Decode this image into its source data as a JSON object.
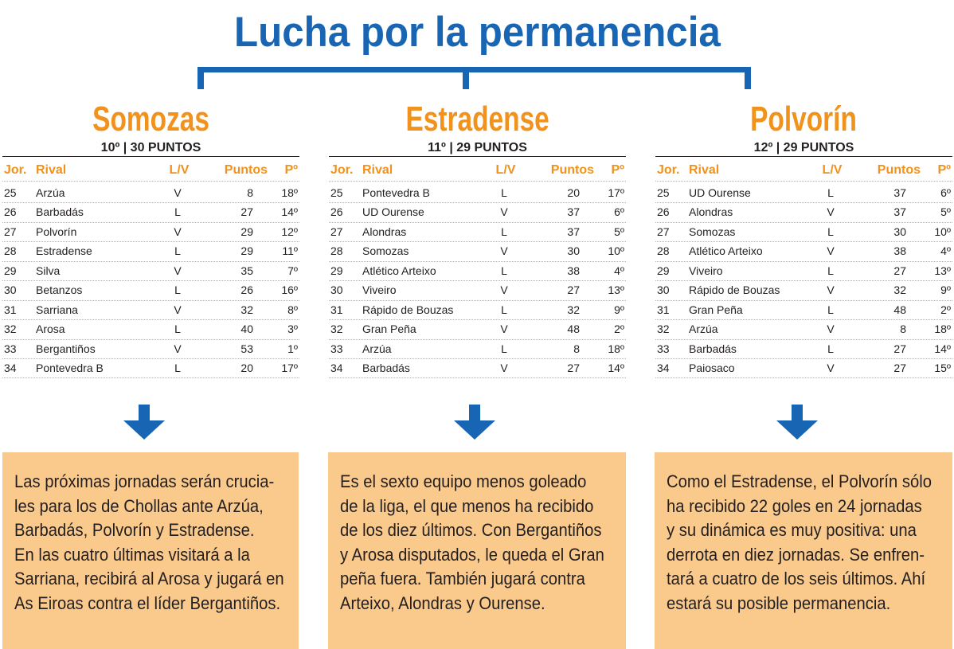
{
  "title": "Lucha por la permanencia",
  "colors": {
    "blue": "#1866b3",
    "orange": "#f0921c",
    "dots": "#f2a43a",
    "box": "#fac98c"
  },
  "icons": {
    "arrow": "arrow-down-icon"
  },
  "table_headers": {
    "jor": "Jor.",
    "rival": "Rival",
    "lv": "L/V",
    "puntos": "Puntos",
    "pos": "Pº"
  },
  "teams": [
    {
      "name": "Somozas",
      "standing": "10º | 30 PUNTOS",
      "fixtures": [
        {
          "jor": "25",
          "rival": "Arzúa",
          "lv": "V",
          "puntos": "8",
          "pos": "18º"
        },
        {
          "jor": "26",
          "rival": "Barbadás",
          "lv": "L",
          "puntos": "27",
          "pos": "14º"
        },
        {
          "jor": "27",
          "rival": "Polvorín",
          "lv": "V",
          "puntos": "29",
          "pos": "12º"
        },
        {
          "jor": "28",
          "rival": "Estradense",
          "lv": "L",
          "puntos": "29",
          "pos": "11º"
        },
        {
          "jor": "29",
          "rival": "Silva",
          "lv": "V",
          "puntos": "35",
          "pos": "7º"
        },
        {
          "jor": "30",
          "rival": "Betanzos",
          "lv": "L",
          "puntos": "26",
          "pos": "16º"
        },
        {
          "jor": "31",
          "rival": "Sarriana",
          "lv": "V",
          "puntos": "32",
          "pos": "8º"
        },
        {
          "jor": "32",
          "rival": "Arosa",
          "lv": "L",
          "puntos": "40",
          "pos": "3º"
        },
        {
          "jor": "33",
          "rival": "Bergantiños",
          "lv": "V",
          "puntos": "53",
          "pos": "1º"
        },
        {
          "jor": "34",
          "rival": "Pontevedra B",
          "lv": "L",
          "puntos": "20",
          "pos": "17º"
        }
      ],
      "summary_lines": [
        "Las próximas jornadas serán crucia-",
        "les para los de Chollas ante Arzúa,",
        "Barbadás, Polvorín y Estradense.",
        "En las cuatro últimas visitará a la",
        "Sarriana, recibirá al Arosa y jugará en",
        "As Eiroas contra el líder Bergantiños."
      ]
    },
    {
      "name": "Estradense",
      "standing": "11º | 29 PUNTOS",
      "fixtures": [
        {
          "jor": "25",
          "rival": "Pontevedra B",
          "lv": "L",
          "puntos": "20",
          "pos": "17º"
        },
        {
          "jor": "26",
          "rival": "UD Ourense",
          "lv": "V",
          "puntos": "37",
          "pos": "6º"
        },
        {
          "jor": "27",
          "rival": "Alondras",
          "lv": "L",
          "puntos": "37",
          "pos": "5º"
        },
        {
          "jor": "28",
          "rival": "Somozas",
          "lv": "V",
          "puntos": "30",
          "pos": "10º"
        },
        {
          "jor": "29",
          "rival": "Atlético Arteixo",
          "lv": "L",
          "puntos": "38",
          "pos": "4º"
        },
        {
          "jor": "30",
          "rival": "Viveiro",
          "lv": "V",
          "puntos": "27",
          "pos": "13º"
        },
        {
          "jor": "31",
          "rival": "Rápido de Bouzas",
          "lv": "L",
          "puntos": "32",
          "pos": "9º"
        },
        {
          "jor": "32",
          "rival": "Gran Peña",
          "lv": "V",
          "puntos": "48",
          "pos": "2º"
        },
        {
          "jor": "33",
          "rival": "Arzúa",
          "lv": "L",
          "puntos": "8",
          "pos": "18º"
        },
        {
          "jor": "34",
          "rival": "Barbadás",
          "lv": "V",
          "puntos": "27",
          "pos": "14º"
        }
      ],
      "summary_lines": [
        "Es el sexto equipo menos goleado",
        "de la liga, el que menos ha recibido",
        "de los diez últimos. Con Bergantiños",
        "y Arosa disputados, le queda el Gran",
        "peña fuera. También jugará contra",
        "Arteixo, Alondras y Ourense."
      ]
    },
    {
      "name": "Polvorín",
      "standing": "12º | 29 PUNTOS",
      "fixtures": [
        {
          "jor": "25",
          "rival": "UD Ourense",
          "lv": "L",
          "puntos": "37",
          "pos": "6º"
        },
        {
          "jor": "26",
          "rival": "Alondras",
          "lv": "V",
          "puntos": "37",
          "pos": "5º"
        },
        {
          "jor": "27",
          "rival": "Somozas",
          "lv": "L",
          "puntos": "30",
          "pos": "10º"
        },
        {
          "jor": "28",
          "rival": "Atlético Arteixo",
          "lv": "V",
          "puntos": "38",
          "pos": "4º"
        },
        {
          "jor": "29",
          "rival": "Viveiro",
          "lv": "L",
          "puntos": "27",
          "pos": "13º"
        },
        {
          "jor": "30",
          "rival": "Rápido de Bouzas",
          "lv": "V",
          "puntos": "32",
          "pos": "9º"
        },
        {
          "jor": "31",
          "rival": "Gran Peña",
          "lv": "L",
          "puntos": "48",
          "pos": "2º"
        },
        {
          "jor": "32",
          "rival": "Arzúa",
          "lv": "V",
          "puntos": "8",
          "pos": "18º"
        },
        {
          "jor": "33",
          "rival": "Barbadás",
          "lv": "L",
          "puntos": "27",
          "pos": "14º"
        },
        {
          "jor": "34",
          "rival": "Paiosaco",
          "lv": "V",
          "puntos": "27",
          "pos": "15º"
        }
      ],
      "summary_lines": [
        "Como el Estradense, el Polvorín sólo",
        "ha recibido 22 goles en 24 jornadas",
        "y su dinámica es muy positiva: una",
        "derrota en diez jornadas. Se enfren-",
        "tará a cuatro de los seis últimos. Ahí",
        "estará su posible permanencia."
      ]
    }
  ]
}
